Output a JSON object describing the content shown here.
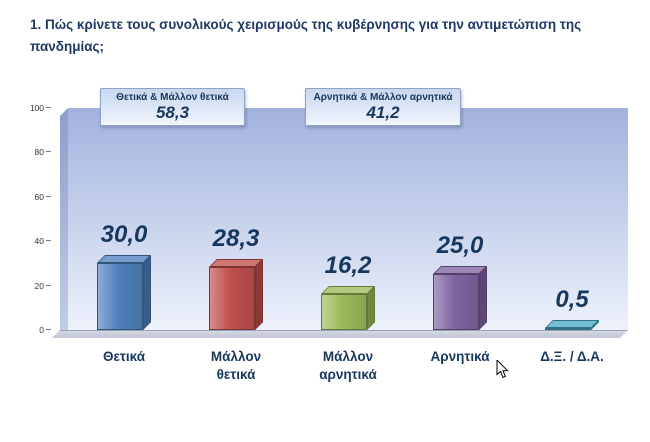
{
  "page": {
    "title": "1. Πώς κρίνετε τους συνολικούς χειρισμούς της κυβέρνησης για την αντιμετώπιση της πανδημίας;"
  },
  "summary": [
    {
      "label": "Θετικά & Μάλλον θετικά",
      "value": "58,3"
    },
    {
      "label": "Αρνητικά & Μάλλον αρνητικά",
      "value": "41,2"
    }
  ],
  "chart_data": {
    "type": "bar",
    "title": "",
    "xlabel": "",
    "ylabel": "",
    "categories": [
      "Θετικά",
      "Μάλλον θετικά",
      "Μάλλον αρνητικά",
      "Αρνητικά",
      "Δ.Ξ. / Δ.Α."
    ],
    "values": [
      30.0,
      28.3,
      16.2,
      25.0,
      0.5
    ],
    "value_labels": [
      "30,0",
      "28,3",
      "16,2",
      "25,0",
      "0,5"
    ],
    "bar_colors": [
      "#4f81bd",
      "#c0504d",
      "#9bbb59",
      "#8064a2",
      "#4bacc6"
    ],
    "ylim": [
      0,
      100
    ],
    "yticks": [
      0,
      20,
      40,
      60,
      80,
      100
    ],
    "legend_position": "none",
    "grid": false,
    "style": "3d"
  },
  "colors": {
    "title_text": "#1f3864",
    "value_text": "#17375d",
    "plot_gradient_top": "#a3b2dd",
    "plot_gradient_bottom": "#edf1fa"
  }
}
